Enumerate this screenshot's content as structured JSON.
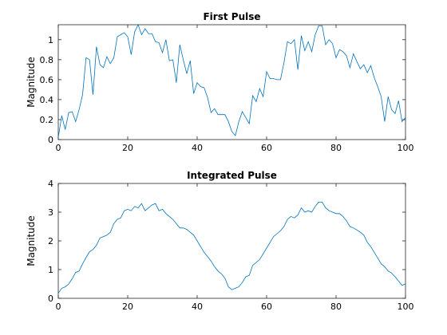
{
  "chart_data": [
    {
      "type": "line",
      "title": "First Pulse",
      "xlabel": "",
      "ylabel": "Magnitude",
      "xlim": [
        0,
        100
      ],
      "ylim": [
        0,
        1.15
      ],
      "xticks": [
        0,
        20,
        40,
        60,
        80,
        100
      ],
      "yticks": [
        0,
        0.2,
        0.4,
        0.6,
        0.8,
        1
      ],
      "ytick_labels": [
        "0",
        "0.2",
        "0.4",
        "0.6",
        "0.8",
        "1"
      ],
      "grid": false,
      "color": "#0072BD",
      "series": [
        {
          "x": [
            0,
            1,
            2,
            3,
            4,
            5,
            6,
            7,
            8,
            9,
            10,
            11,
            12,
            13,
            14,
            15,
            16,
            17,
            18,
            19,
            20,
            21,
            22,
            23,
            24,
            25,
            26,
            27,
            28,
            29,
            30,
            31,
            32,
            33,
            34,
            35,
            36,
            37,
            38,
            39,
            40,
            41,
            42,
            43,
            44,
            45,
            46,
            47,
            48,
            49,
            50,
            51,
            52,
            53,
            54,
            55,
            56,
            57,
            58,
            59,
            60,
            61,
            62,
            63,
            64,
            65,
            66,
            67,
            68,
            69,
            70,
            71,
            72,
            73,
            74,
            75,
            76,
            77,
            78,
            79,
            80,
            81,
            82,
            83,
            84,
            85,
            86,
            87,
            88,
            89,
            90,
            91,
            92,
            93,
            94,
            95,
            96,
            97,
            98,
            99,
            100
          ],
          "y": [
            0.02,
            0.24,
            0.1,
            0.27,
            0.28,
            0.18,
            0.3,
            0.45,
            0.82,
            0.8,
            0.45,
            0.93,
            0.75,
            0.72,
            0.83,
            0.76,
            0.82,
            1.03,
            1.05,
            1.07,
            1.03,
            0.85,
            1.08,
            1.15,
            1.05,
            1.11,
            1.06,
            1.06,
            0.98,
            0.97,
            0.87,
            1.0,
            0.79,
            0.8,
            0.57,
            0.95,
            0.8,
            0.66,
            0.79,
            0.46,
            0.57,
            0.53,
            0.52,
            0.42,
            0.27,
            0.31,
            0.25,
            0.25,
            0.25,
            0.18,
            0.08,
            0.04,
            0.18,
            0.28,
            0.22,
            0.16,
            0.44,
            0.38,
            0.51,
            0.43,
            0.68,
            0.61,
            0.61,
            0.6,
            0.6,
            0.77,
            0.98,
            0.96,
            1.0,
            0.7,
            1.04,
            0.89,
            0.98,
            0.88,
            1.05,
            1.14,
            1.14,
            0.95,
            1.0,
            0.96,
            0.82,
            0.9,
            0.88,
            0.84,
            0.72,
            0.86,
            0.78,
            0.71,
            0.75,
            0.67,
            0.74,
            0.62,
            0.53,
            0.43,
            0.18,
            0.43,
            0.3,
            0.26,
            0.39,
            0.18,
            0.22
          ]
        }
      ]
    },
    {
      "type": "line",
      "title": "Integrated Pulse",
      "xlabel": "",
      "ylabel": "Magnitude",
      "xlim": [
        0,
        100
      ],
      "ylim": [
        0,
        4
      ],
      "xticks": [
        0,
        20,
        40,
        60,
        80,
        100
      ],
      "yticks": [
        0,
        1,
        2,
        3,
        4
      ],
      "ytick_labels": [
        "0",
        "1",
        "2",
        "3",
        "4"
      ],
      "grid": false,
      "color": "#0072BD",
      "series": [
        {
          "x": [
            0,
            1,
            2,
            3,
            4,
            5,
            6,
            7,
            8,
            9,
            10,
            11,
            12,
            13,
            14,
            15,
            16,
            17,
            18,
            19,
            20,
            21,
            22,
            23,
            24,
            25,
            26,
            27,
            28,
            29,
            30,
            31,
            32,
            33,
            34,
            35,
            36,
            37,
            38,
            39,
            40,
            41,
            42,
            43,
            44,
            45,
            46,
            47,
            48,
            49,
            50,
            51,
            52,
            53,
            54,
            55,
            56,
            57,
            58,
            59,
            60,
            61,
            62,
            63,
            64,
            65,
            66,
            67,
            68,
            69,
            70,
            71,
            72,
            73,
            74,
            75,
            76,
            77,
            78,
            79,
            80,
            81,
            82,
            83,
            84,
            85,
            86,
            87,
            88,
            89,
            90,
            91,
            92,
            93,
            94,
            95,
            96,
            97,
            98,
            99,
            100
          ],
          "y": [
            0.18,
            0.35,
            0.4,
            0.5,
            0.68,
            0.9,
            0.95,
            1.2,
            1.42,
            1.62,
            1.7,
            1.85,
            2.1,
            2.15,
            2.2,
            2.3,
            2.6,
            2.75,
            2.8,
            3.05,
            3.1,
            3.05,
            3.2,
            3.15,
            3.3,
            3.05,
            3.15,
            3.25,
            3.3,
            3.05,
            3.1,
            2.95,
            2.85,
            2.75,
            2.6,
            2.45,
            2.45,
            2.4,
            2.3,
            2.2,
            2.0,
            1.8,
            1.6,
            1.45,
            1.3,
            1.1,
            0.95,
            0.85,
            0.7,
            0.4,
            0.3,
            0.35,
            0.4,
            0.55,
            0.75,
            0.8,
            1.15,
            1.25,
            1.35,
            1.55,
            1.75,
            1.95,
            2.15,
            2.25,
            2.35,
            2.5,
            2.75,
            2.85,
            2.8,
            2.9,
            3.15,
            3.0,
            3.05,
            3.0,
            3.2,
            3.35,
            3.35,
            3.15,
            3.05,
            3.0,
            2.95,
            2.95,
            2.85,
            2.7,
            2.5,
            2.45,
            2.38,
            2.3,
            2.2,
            1.95,
            1.8,
            1.6,
            1.4,
            1.2,
            1.1,
            0.95,
            0.88,
            0.75,
            0.6,
            0.45,
            0.5
          ]
        }
      ]
    }
  ]
}
